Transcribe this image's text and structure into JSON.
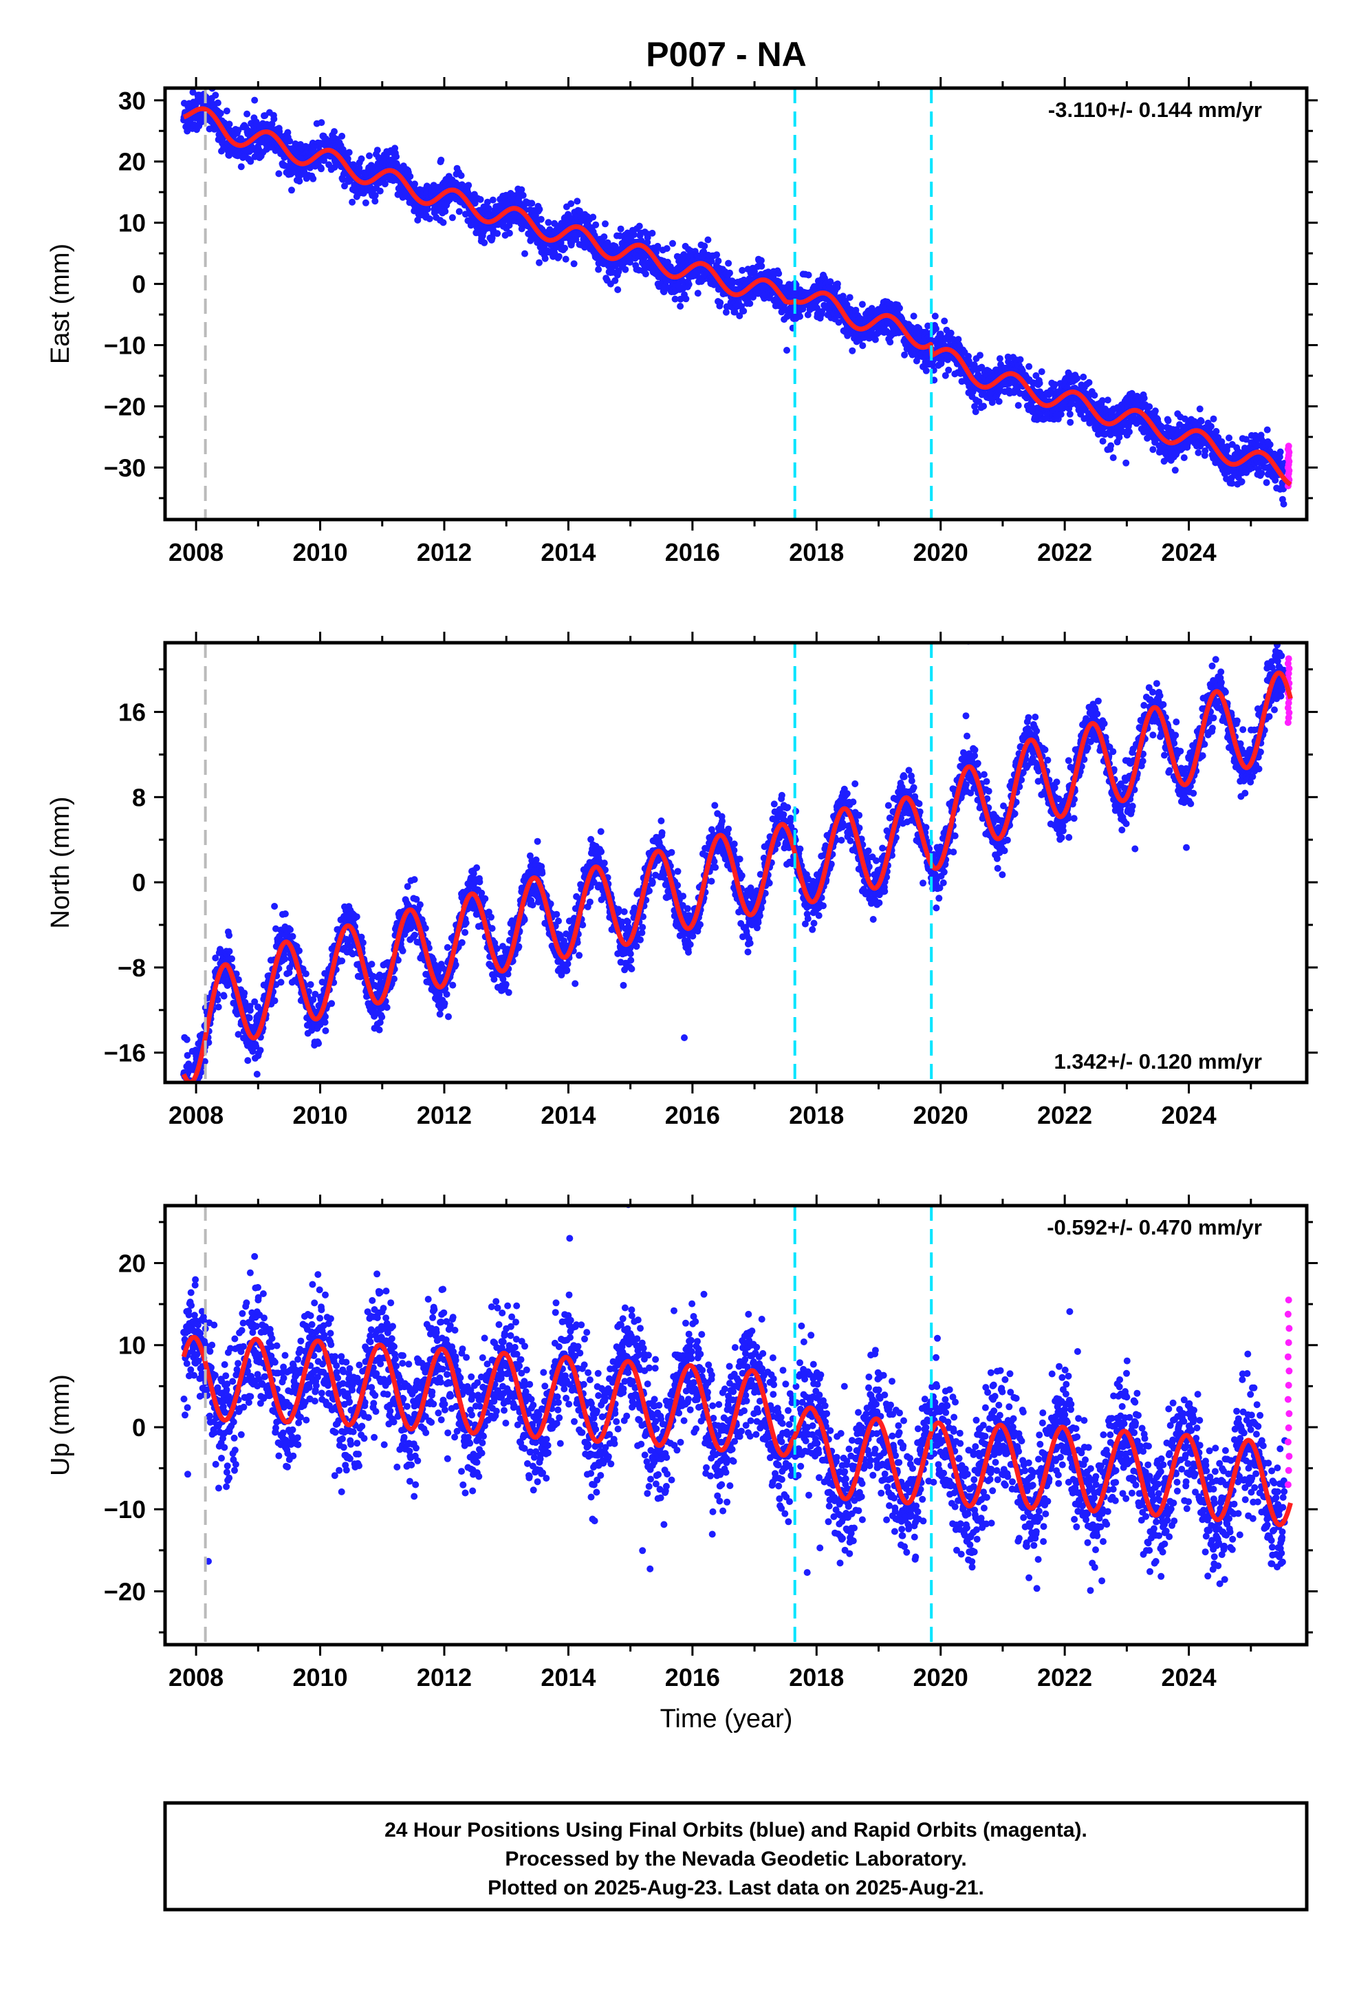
{
  "title": "P007 - NA",
  "x_axis_label": "Time (year)",
  "footer": {
    "line1": "24 Hour Positions Using Final Orbits (blue) and Rapid Orbits (magenta).",
    "line2": "Processed by the Nevada Geodetic Laboratory.",
    "line3": "Plotted on 2025-Aug-23. Last data on 2025-Aug-21."
  },
  "colors": {
    "final_orbits": "#1e1eff",
    "rapid_orbits": "#ff1eff",
    "model": "#ff2020",
    "event_equipment": "#bbbbbb",
    "event_other": "#00e5ff"
  },
  "chart_data": [
    {
      "type": "scatter",
      "component": "east",
      "ylabel": "East (mm)",
      "rate_label": "-3.110+/- 0.144 mm/yr",
      "rate_mm_per_yr": -3.11,
      "rate_sigma": 0.144,
      "xlim": [
        2007.5,
        2025.9
      ],
      "ylim": [
        -38.5,
        32
      ],
      "xticks": [
        2008,
        2010,
        2012,
        2014,
        2016,
        2018,
        2020,
        2022,
        2024
      ],
      "yticks": [
        -30,
        -20,
        -10,
        0,
        10,
        20,
        30
      ],
      "data_start": 2007.8,
      "data_end": 2025.64,
      "rapid_start": 2025.55,
      "event_lines": [
        {
          "x": 2008.15,
          "style": "gray"
        },
        {
          "x": 2017.65,
          "style": "cyan"
        },
        {
          "x": 2019.85,
          "style": "cyan"
        }
      ],
      "model_anchors": [
        [
          2007.8,
          28.5
        ],
        [
          2008.5,
          25.0
        ],
        [
          2009.5,
          22.0
        ],
        [
          2010.5,
          19.0
        ],
        [
          2011.5,
          15.5
        ],
        [
          2012.5,
          12.5
        ],
        [
          2013.5,
          9.5
        ],
        [
          2014.5,
          6.5
        ],
        [
          2015.5,
          3.5
        ],
        [
          2016.5,
          0.5
        ],
        [
          2017.5,
          -2.0
        ],
        [
          2017.66,
          -1.0
        ],
        [
          2018.5,
          -5.0
        ],
        [
          2019.5,
          -8.0
        ],
        [
          2019.84,
          -9.0
        ],
        [
          2019.86,
          -11.0
        ],
        [
          2020.5,
          -14.5
        ],
        [
          2021.5,
          -17.5
        ],
        [
          2022.5,
          -20.5
        ],
        [
          2023.5,
          -23.5
        ],
        [
          2024.5,
          -27.0
        ],
        [
          2025.64,
          -31.0
        ]
      ],
      "seasonal_amplitude": 1.8,
      "scatter_sd": 1.6,
      "rapid_range": [
        -33,
        -26.5
      ]
    },
    {
      "type": "scatter",
      "component": "north",
      "ylabel": "North (mm)",
      "rate_label": "1.342+/- 0.120 mm/yr",
      "rate_mm_per_yr": 1.342,
      "rate_sigma": 0.12,
      "xlim": [
        2007.5,
        2025.9
      ],
      "ylim": [
        -18.8,
        22.5
      ],
      "xticks": [
        2008,
        2010,
        2012,
        2014,
        2016,
        2018,
        2020,
        2022,
        2024
      ],
      "yticks": [
        -16,
        -8,
        0,
        8,
        16
      ],
      "data_start": 2007.8,
      "data_end": 2025.64,
      "rapid_start": 2025.55,
      "event_lines": [
        {
          "x": 2008.15,
          "style": "gray"
        },
        {
          "x": 2017.65,
          "style": "cyan"
        },
        {
          "x": 2019.85,
          "style": "cyan"
        }
      ],
      "model_anchors": [
        [
          2007.8,
          -15.5
        ],
        [
          2008.5,
          -11.5
        ],
        [
          2009.5,
          -9.5
        ],
        [
          2010.5,
          -8.0
        ],
        [
          2011.5,
          -6.5
        ],
        [
          2012.5,
          -5.0
        ],
        [
          2013.5,
          -3.5
        ],
        [
          2014.5,
          -2.5
        ],
        [
          2015.5,
          -1.0
        ],
        [
          2016.5,
          0.5
        ],
        [
          2017.5,
          1.5
        ],
        [
          2018.5,
          3.0
        ],
        [
          2019.5,
          4.0
        ],
        [
          2020.5,
          7.0
        ],
        [
          2021.5,
          9.5
        ],
        [
          2022.5,
          11.0
        ],
        [
          2023.5,
          12.5
        ],
        [
          2024.5,
          14.0
        ],
        [
          2025.64,
          16.0
        ]
      ],
      "seasonal_amplitude": 4.0,
      "scatter_sd": 1.2,
      "rapid_range": [
        15,
        21
      ]
    },
    {
      "type": "scatter",
      "component": "up",
      "ylabel": "Up (mm)",
      "rate_label": "-0.592+/- 0.470 mm/yr",
      "rate_mm_per_yr": -0.592,
      "rate_sigma": 0.47,
      "xlim": [
        2007.5,
        2025.9
      ],
      "ylim": [
        -26.5,
        27
      ],
      "xticks": [
        2008,
        2010,
        2012,
        2014,
        2016,
        2018,
        2020,
        2022,
        2024
      ],
      "yticks": [
        -20,
        -10,
        0,
        10,
        20
      ],
      "data_start": 2007.8,
      "data_end": 2025.64,
      "rapid_start": 2025.55,
      "event_lines": [
        {
          "x": 2008.15,
          "style": "gray"
        },
        {
          "x": 2017.65,
          "style": "cyan"
        },
        {
          "x": 2019.85,
          "style": "cyan"
        }
      ],
      "model_anchors": [
        [
          2007.8,
          6.0
        ],
        [
          2010.0,
          5.5
        ],
        [
          2013.0,
          4.0
        ],
        [
          2016.0,
          2.5
        ],
        [
          2017.6,
          1.5
        ],
        [
          2018.0,
          -3.5
        ],
        [
          2019.0,
          -4.0
        ],
        [
          2020.0,
          -4.5
        ],
        [
          2022.0,
          -5.0
        ],
        [
          2024.0,
          -6.0
        ],
        [
          2025.64,
          -7.0
        ]
      ],
      "seasonal_amplitude": 5.0,
      "scatter_sd": 3.6,
      "rapid_range": [
        -7,
        15.5
      ]
    }
  ]
}
